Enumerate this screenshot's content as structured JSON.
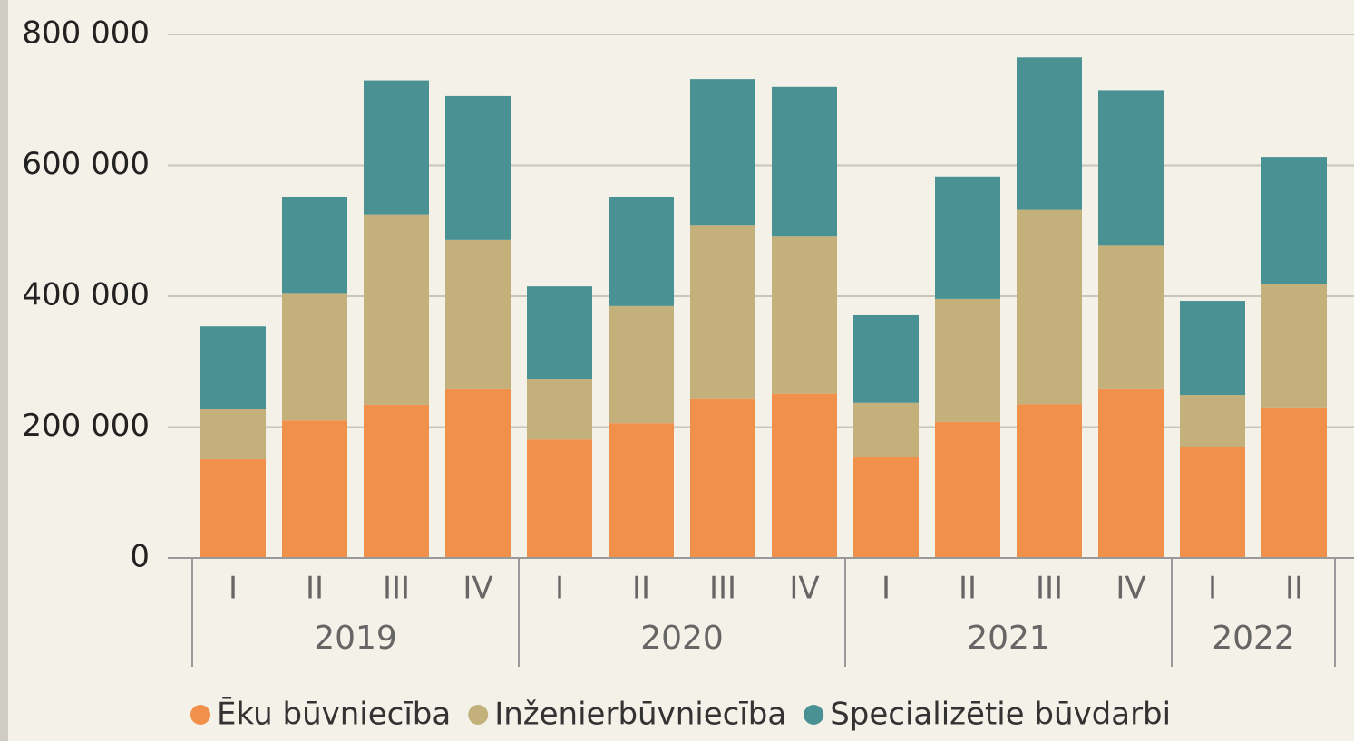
{
  "chart_data": {
    "type": "stacked_bar",
    "groups": [
      {
        "label": "2019",
        "categories": [
          "I",
          "II",
          "III",
          "IV"
        ]
      },
      {
        "label": "2020",
        "categories": [
          "I",
          "II",
          "III",
          "IV"
        ]
      },
      {
        "label": "2021",
        "categories": [
          "I",
          "II",
          "III",
          "IV"
        ]
      },
      {
        "label": "2022",
        "categories": [
          "I",
          "II"
        ]
      }
    ],
    "series": [
      {
        "name": "Ēku būvniecība",
        "color": "#f0904a",
        "values": [
          151000,
          210000,
          234000,
          259000,
          181000,
          206000,
          244000,
          251000,
          155000,
          208000,
          235000,
          259000,
          170000,
          230000
        ]
      },
      {
        "name": "Inženierbūvniecība",
        "color": "#c4b07b",
        "values": [
          77000,
          195000,
          291000,
          227000,
          93000,
          179000,
          265000,
          240000,
          82000,
          188000,
          297000,
          218000,
          79000,
          189000
        ]
      },
      {
        "name": "Specializētie būvdarbi",
        "color": "#4a9194",
        "values": [
          126000,
          147000,
          205000,
          220000,
          141000,
          167000,
          223000,
          229000,
          134000,
          187000,
          233000,
          238000,
          144000,
          194000
        ]
      }
    ],
    "ylim": [
      0,
      800000
    ],
    "yticks": [
      0,
      {
        "value": 200000,
        "label": "200 000"
      },
      {
        "value": 400000,
        "label": "400 000"
      },
      {
        "value": 600000,
        "label": "600 000"
      },
      {
        "value": 800000,
        "label": "800 000"
      }
    ],
    "grid": true,
    "legend": "bottom"
  }
}
